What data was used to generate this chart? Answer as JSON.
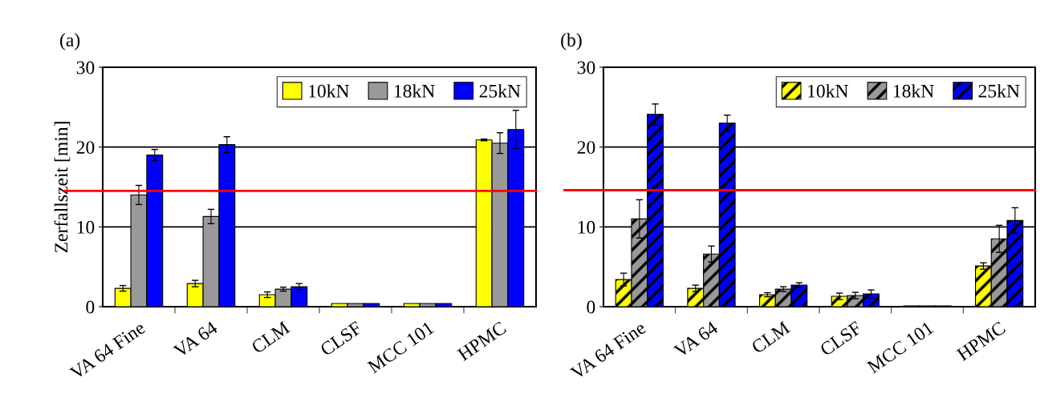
{
  "chart_data": [
    {
      "type": "bar",
      "title": "(a)",
      "ylabel": "Zerfallszeit [min]",
      "categories": [
        "VA 64 Fine",
        "VA 64",
        "CLM",
        "CLSF",
        "MCC 101",
        "HPMC"
      ],
      "ylim": [
        0,
        30
      ],
      "yticks": [
        0,
        10,
        20,
        30
      ],
      "grid": "y",
      "legend": "top right",
      "series": [
        {
          "name": "10kN",
          "color": "#ffff00",
          "values": [
            2.3,
            2.9,
            1.5,
            0.4,
            0.4,
            20.9
          ],
          "errors": [
            0.35,
            0.4,
            0.35,
            null,
            null,
            0.1
          ]
        },
        {
          "name": "18kN",
          "color": "#999999",
          "values": [
            14.0,
            11.3,
            2.2,
            0.4,
            0.4,
            20.5
          ],
          "errors": [
            1.2,
            0.9,
            0.25,
            null,
            null,
            1.3
          ]
        },
        {
          "name": "25kN",
          "color": "#0000ff",
          "values": [
            19.0,
            20.3,
            2.5,
            0.4,
            0.4,
            22.2
          ],
          "errors": [
            0.7,
            1.0,
            0.4,
            null,
            null,
            2.4
          ]
        }
      ],
      "ref_lines": [
        {
          "axis": "y",
          "value": 14.5,
          "color": "#ff0000"
        }
      ]
    },
    {
      "type": "bar",
      "title": "(b)",
      "categories": [
        "VA 64 Fine",
        "VA 64",
        "CLM",
        "CLSF",
        "MCC 101",
        "HPMC"
      ],
      "ylim": [
        0,
        30
      ],
      "yticks": [
        0,
        10,
        20,
        30
      ],
      "grid": "y",
      "legend": "top right",
      "series": [
        {
          "name": "10kN",
          "color": "#ffff00",
          "values": [
            3.4,
            2.3,
            1.5,
            1.3,
            0.1,
            5.1
          ],
          "errors": [
            0.8,
            0.4,
            0.25,
            0.4,
            null,
            0.4
          ]
        },
        {
          "name": "18kN",
          "color": "#999999",
          "values": [
            11.0,
            6.6,
            2.2,
            1.4,
            0.1,
            8.5
          ],
          "errors": [
            2.4,
            1.0,
            0.3,
            0.4,
            null,
            1.7
          ]
        },
        {
          "name": "25kN",
          "color": "#0000ff",
          "values": [
            24.1,
            23.0,
            2.7,
            1.6,
            0.1,
            10.8
          ],
          "errors": [
            1.3,
            1.0,
            0.3,
            0.5,
            null,
            1.6
          ]
        }
      ],
      "ref_lines": [
        {
          "axis": "y",
          "value": 14.6,
          "color": "#ff0000"
        }
      ]
    }
  ]
}
